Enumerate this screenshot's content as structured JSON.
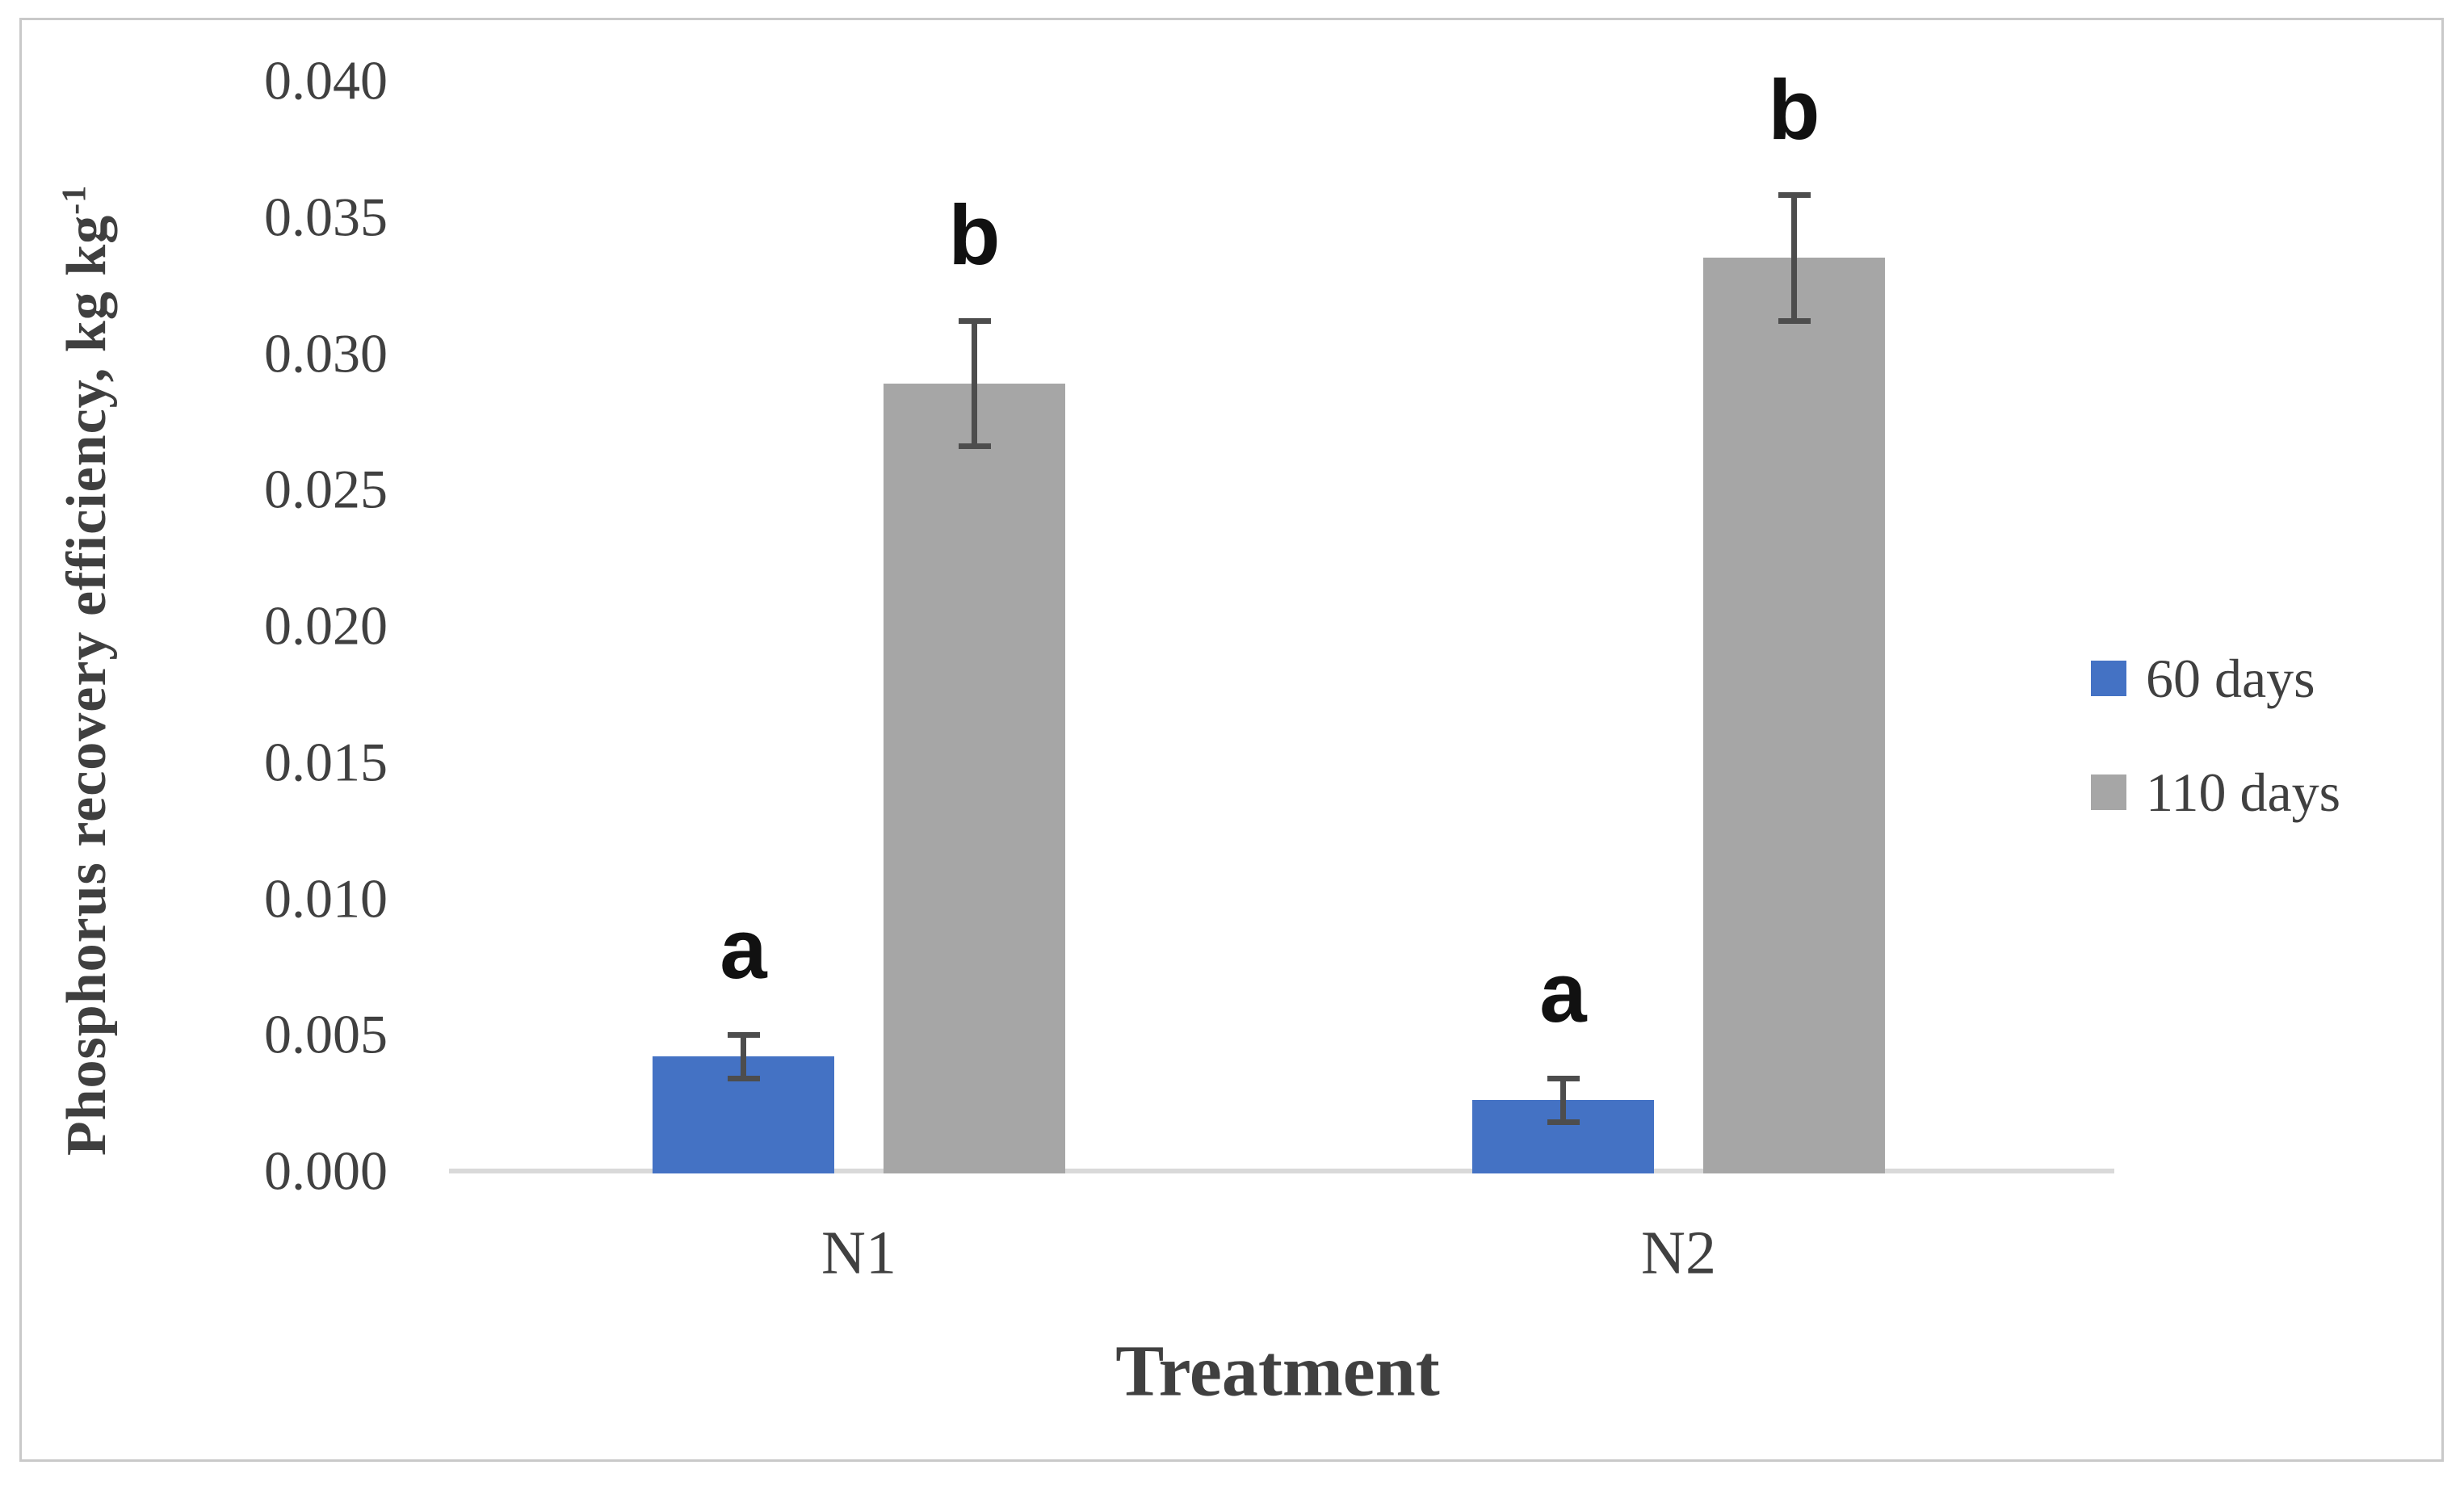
{
  "figure": {
    "background_color": "#ffffff",
    "frame_color": "#c9c9c9"
  },
  "chart_data": {
    "type": "bar",
    "title": "",
    "categories": [
      "N1",
      "N2"
    ],
    "series": [
      {
        "name": "60 days",
        "color": "#4472C4",
        "values": [
          0.0042,
          0.0026
        ],
        "errors": [
          0.0008,
          0.0008
        ],
        "sig_letters": [
          "a",
          "a"
        ]
      },
      {
        "name": "110 days",
        "color": "#A6A6A6",
        "values": [
          0.0289,
          0.0335
        ],
        "errors": [
          0.0023,
          0.0023
        ],
        "sig_letters": [
          "b",
          "b"
        ]
      }
    ],
    "xlabel": "Treatment",
    "ylabel": "Phosphorus recovery efficiency, kg kg⁻¹",
    "ylabel_main": "Phosphorus recovery efficiency, kg kg",
    "ylabel_sup": "-1",
    "ylim": [
      0,
      0.04
    ],
    "ytick_step": 0.005,
    "yticks": [
      "0.040",
      "0.035",
      "0.030",
      "0.025",
      "0.020",
      "0.015",
      "0.010",
      "0.005",
      "0.000"
    ],
    "ytick_values": [
      0.04,
      0.035,
      0.03,
      0.025,
      0.02,
      0.015,
      0.01,
      0.005,
      0.0
    ],
    "grid": "off",
    "legend_position": "right",
    "error_bar_color": "#4d4d4d",
    "axis_line_color": "#d9d9d9",
    "tick_label_color": "#404040",
    "sig_letter_color": "#111111"
  }
}
